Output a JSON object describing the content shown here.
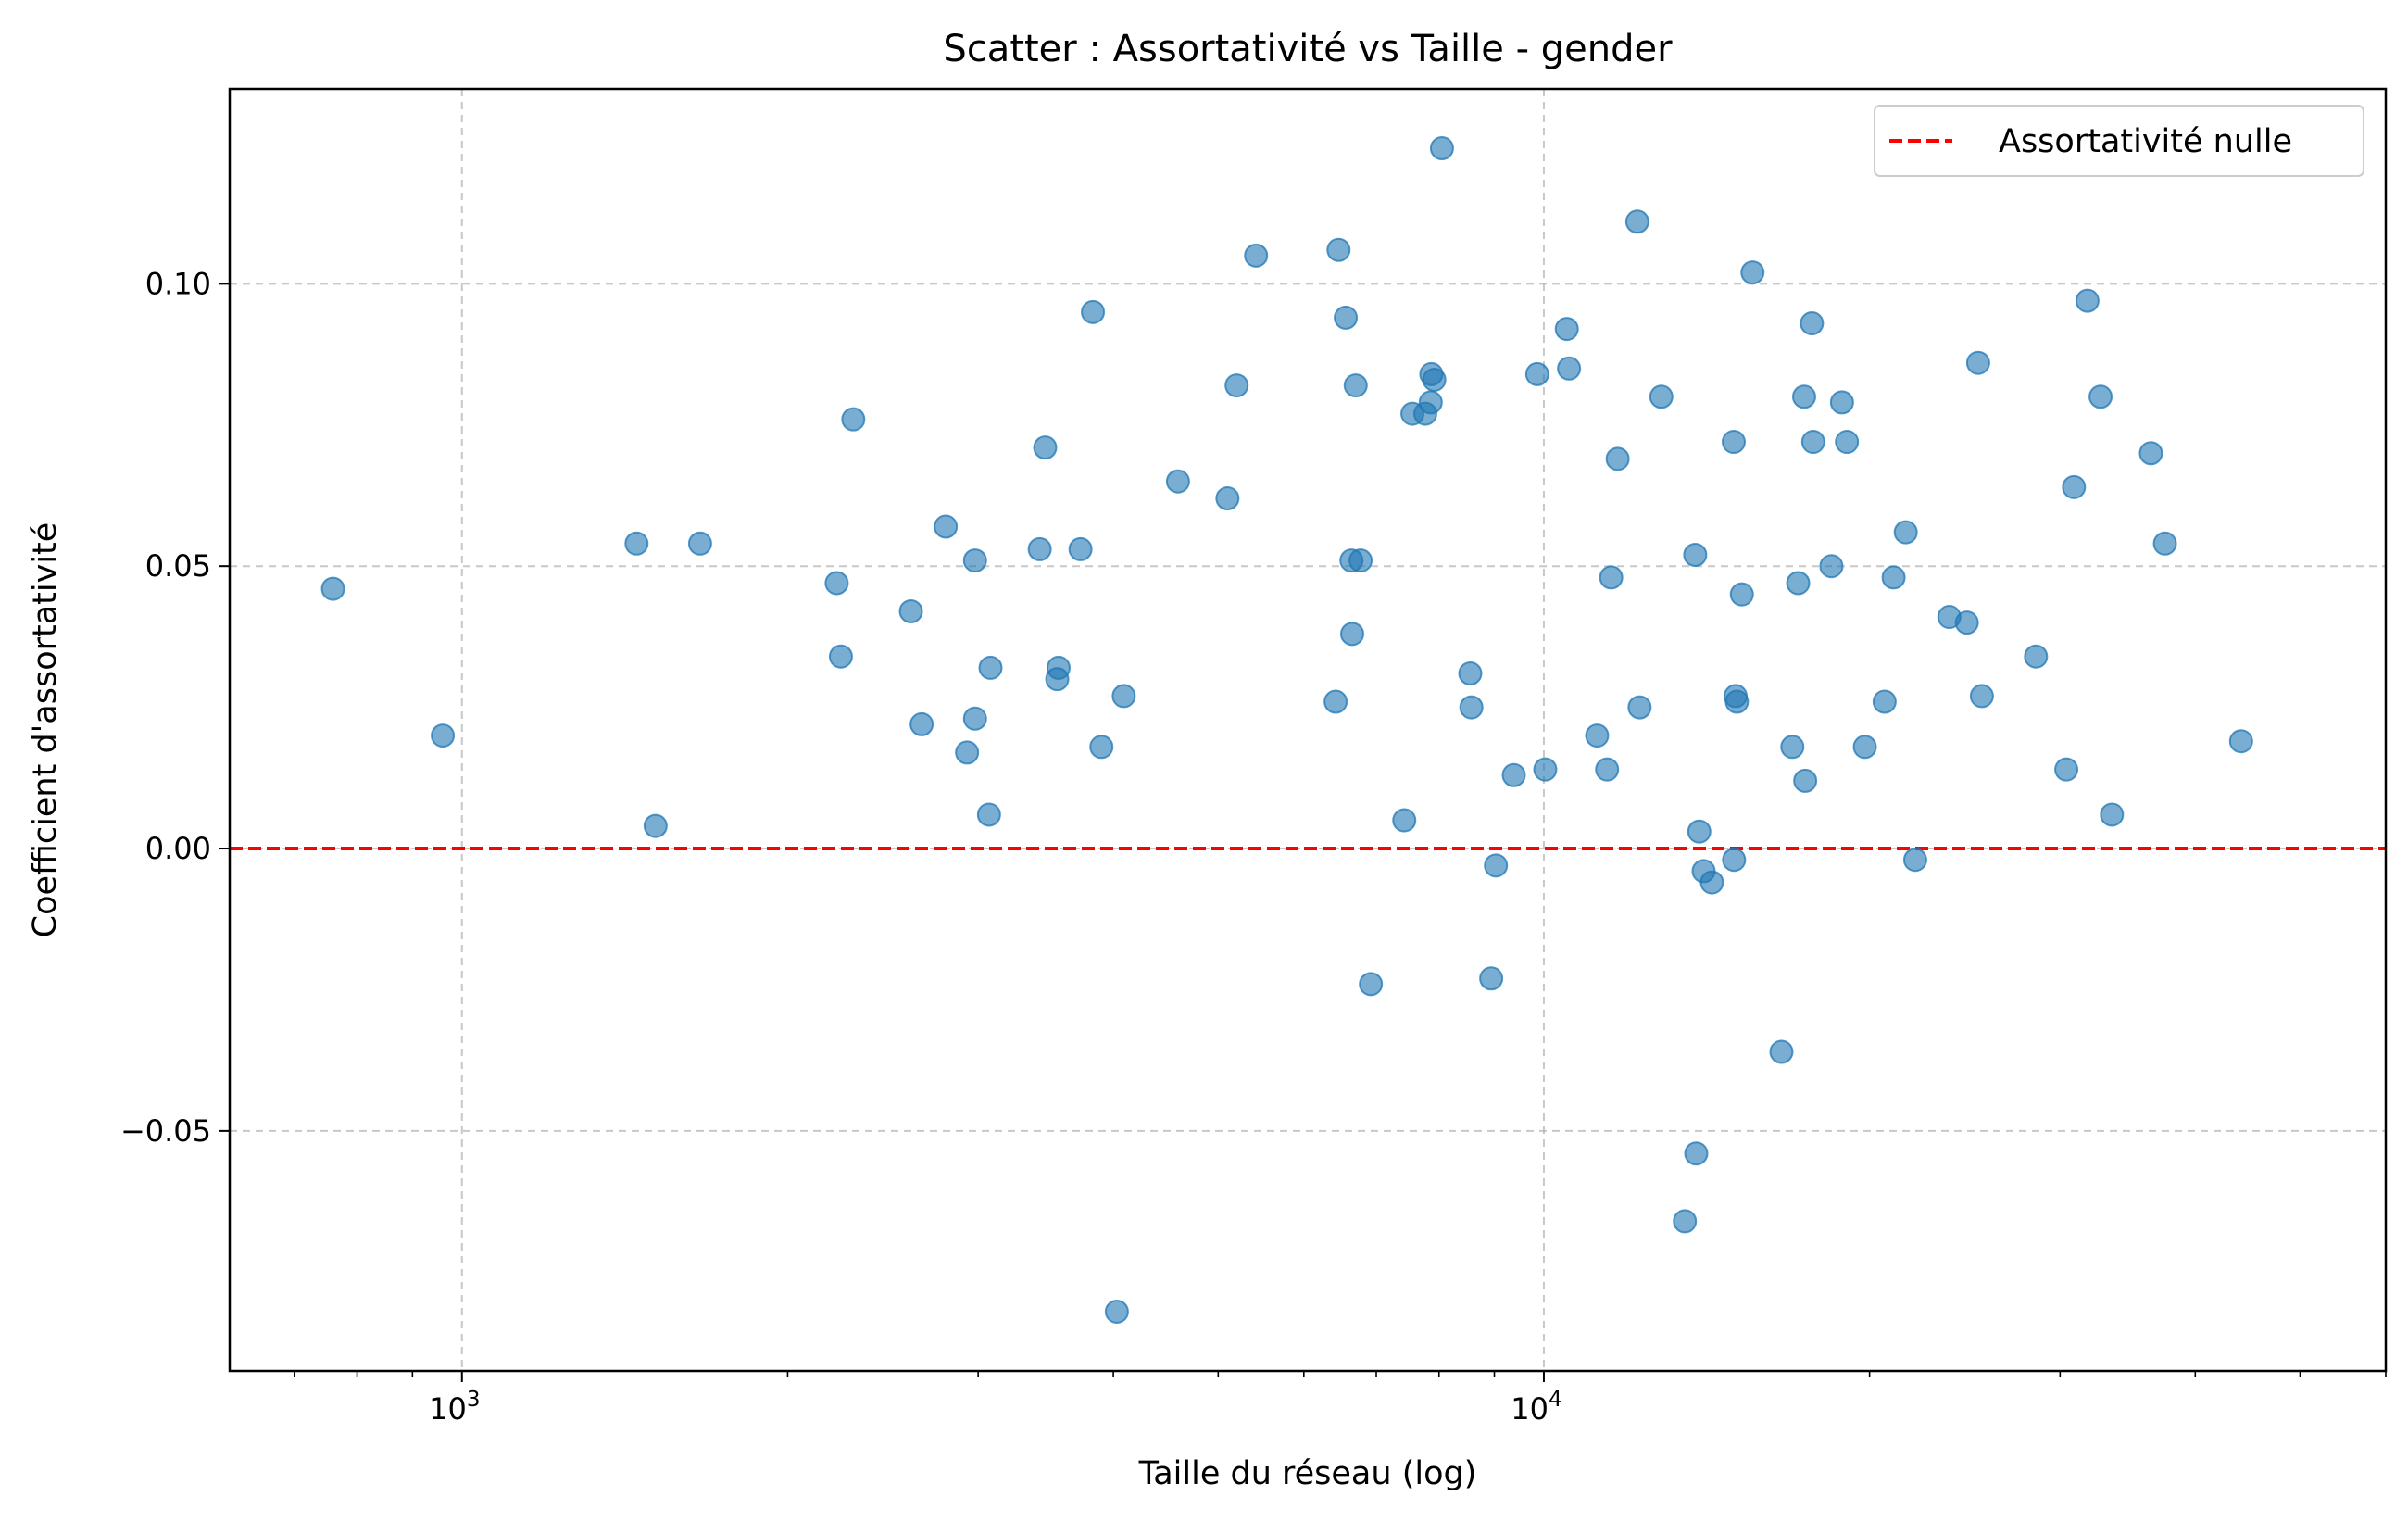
{
  "chart_data": {
    "type": "scatter",
    "title": "Scatter : Assortativité vs Taille - gender",
    "xlabel": "Taille du réseau (log)",
    "ylabel": "Coefficient d'assortativité",
    "xscale": "log",
    "xlim": [
      610,
      60000
    ],
    "ylim": [
      -0.0925,
      0.1345
    ],
    "x_ticks": [
      {
        "value": 1000,
        "base": "10",
        "exp": "3"
      },
      {
        "value": 10000,
        "base": "10",
        "exp": "4"
      }
    ],
    "y_ticks": [
      {
        "value": 0.1,
        "label": "0.10"
      },
      {
        "value": 0.05,
        "label": "0.05"
      },
      {
        "value": 0.0,
        "label": "0.00"
      },
      {
        "value": -0.05,
        "label": "−0.05"
      }
    ],
    "grid": true,
    "legend_position": "top-right",
    "reference_line": {
      "y": 0,
      "label": "Assortativité nulle",
      "color": "#ff0000",
      "style": "dashed"
    },
    "point_color": "#1f77b4",
    "points": [
      {
        "x": 760,
        "y": 0.046
      },
      {
        "x": 960,
        "y": 0.02
      },
      {
        "x": 1450,
        "y": 0.054
      },
      {
        "x": 1510,
        "y": 0.004
      },
      {
        "x": 1660,
        "y": 0.054
      },
      {
        "x": 2220,
        "y": 0.047
      },
      {
        "x": 2240,
        "y": 0.034
      },
      {
        "x": 2300,
        "y": 0.076
      },
      {
        "x": 2600,
        "y": 0.042
      },
      {
        "x": 2660,
        "y": 0.022
      },
      {
        "x": 2800,
        "y": 0.057
      },
      {
        "x": 2930,
        "y": 0.017
      },
      {
        "x": 2980,
        "y": 0.051
      },
      {
        "x": 2980,
        "y": 0.023
      },
      {
        "x": 3080,
        "y": 0.032
      },
      {
        "x": 3070,
        "y": 0.006
      },
      {
        "x": 3420,
        "y": 0.053
      },
      {
        "x": 3460,
        "y": 0.071
      },
      {
        "x": 3560,
        "y": 0.032
      },
      {
        "x": 3550,
        "y": 0.03
      },
      {
        "x": 3730,
        "y": 0.053
      },
      {
        "x": 3830,
        "y": 0.095
      },
      {
        "x": 3900,
        "y": 0.018
      },
      {
        "x": 4030,
        "y": -0.082
      },
      {
        "x": 4090,
        "y": 0.027
      },
      {
        "x": 4590,
        "y": 0.065
      },
      {
        "x": 5100,
        "y": 0.062
      },
      {
        "x": 5200,
        "y": 0.082
      },
      {
        "x": 5420,
        "y": 0.105
      },
      {
        "x": 6420,
        "y": 0.026
      },
      {
        "x": 6460,
        "y": 0.106
      },
      {
        "x": 6560,
        "y": 0.094
      },
      {
        "x": 6640,
        "y": 0.051
      },
      {
        "x": 6650,
        "y": 0.038
      },
      {
        "x": 6700,
        "y": 0.082
      },
      {
        "x": 6770,
        "y": 0.051
      },
      {
        "x": 6920,
        "y": -0.024
      },
      {
        "x": 7430,
        "y": 0.005
      },
      {
        "x": 7560,
        "y": 0.077
      },
      {
        "x": 7770,
        "y": 0.077
      },
      {
        "x": 7870,
        "y": 0.084
      },
      {
        "x": 7860,
        "y": 0.079
      },
      {
        "x": 7920,
        "y": 0.083
      },
      {
        "x": 8050,
        "y": 0.124
      },
      {
        "x": 8550,
        "y": 0.031
      },
      {
        "x": 8570,
        "y": 0.025
      },
      {
        "x": 8940,
        "y": -0.023
      },
      {
        "x": 9030,
        "y": -0.003
      },
      {
        "x": 9380,
        "y": 0.013
      },
      {
        "x": 9860,
        "y": 0.084
      },
      {
        "x": 10030,
        "y": 0.014
      },
      {
        "x": 10500,
        "y": 0.092
      },
      {
        "x": 10550,
        "y": 0.085
      },
      {
        "x": 11200,
        "y": 0.02
      },
      {
        "x": 11440,
        "y": 0.014
      },
      {
        "x": 11540,
        "y": 0.048
      },
      {
        "x": 11700,
        "y": 0.069
      },
      {
        "x": 12260,
        "y": 0.025
      },
      {
        "x": 12200,
        "y": 0.111
      },
      {
        "x": 12840,
        "y": 0.08
      },
      {
        "x": 13500,
        "y": -0.066
      },
      {
        "x": 13800,
        "y": 0.052
      },
      {
        "x": 13830,
        "y": -0.054
      },
      {
        "x": 13920,
        "y": 0.003
      },
      {
        "x": 14050,
        "y": -0.004
      },
      {
        "x": 14300,
        "y": -0.006
      },
      {
        "x": 14980,
        "y": 0.072
      },
      {
        "x": 14990,
        "y": -0.002
      },
      {
        "x": 15040,
        "y": 0.027
      },
      {
        "x": 15080,
        "y": 0.026
      },
      {
        "x": 15240,
        "y": 0.045
      },
      {
        "x": 15590,
        "y": 0.102
      },
      {
        "x": 16580,
        "y": -0.036
      },
      {
        "x": 16970,
        "y": 0.018
      },
      {
        "x": 17180,
        "y": 0.047
      },
      {
        "x": 17400,
        "y": 0.08
      },
      {
        "x": 17440,
        "y": 0.012
      },
      {
        "x": 17690,
        "y": 0.093
      },
      {
        "x": 17740,
        "y": 0.072
      },
      {
        "x": 18440,
        "y": 0.05
      },
      {
        "x": 18860,
        "y": 0.079
      },
      {
        "x": 19060,
        "y": 0.072
      },
      {
        "x": 19800,
        "y": 0.018
      },
      {
        "x": 20650,
        "y": 0.026
      },
      {
        "x": 21050,
        "y": 0.048
      },
      {
        "x": 21600,
        "y": 0.056
      },
      {
        "x": 22040,
        "y": -0.002
      },
      {
        "x": 23700,
        "y": 0.041
      },
      {
        "x": 24600,
        "y": 0.04
      },
      {
        "x": 25200,
        "y": 0.086
      },
      {
        "x": 25400,
        "y": 0.027
      },
      {
        "x": 28500,
        "y": 0.034
      },
      {
        "x": 30400,
        "y": 0.014
      },
      {
        "x": 30900,
        "y": 0.064
      },
      {
        "x": 31800,
        "y": 0.097
      },
      {
        "x": 32700,
        "y": 0.08
      },
      {
        "x": 33500,
        "y": 0.006
      },
      {
        "x": 36400,
        "y": 0.07
      },
      {
        "x": 37500,
        "y": 0.054
      },
      {
        "x": 44100,
        "y": 0.019
      }
    ]
  }
}
